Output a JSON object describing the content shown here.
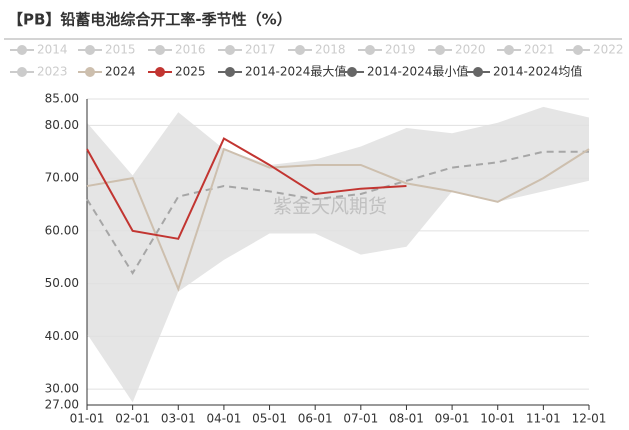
{
  "chart_data": {
    "type": "line",
    "title": "【PB】铅蓄电池综合开工率-季节性（%）",
    "watermark": "紫金天风期货",
    "legend_inactive": [
      "2014",
      "2015",
      "2016",
      "2017",
      "2018",
      "2019",
      "2020",
      "2021",
      "2022",
      "2023"
    ],
    "x": [
      "01-01",
      "02-01",
      "03-01",
      "04-01",
      "05-01",
      "06-01",
      "07-01",
      "08-01",
      "09-01",
      "10-01",
      "11-01",
      "12-01"
    ],
    "ylim": [
      27,
      85
    ],
    "yticks": [
      {
        "value": 27,
        "label": "27.00"
      },
      {
        "value": 30,
        "label": "30.00"
      },
      {
        "value": 40,
        "label": "40.00"
      },
      {
        "value": 50,
        "label": "50.00"
      },
      {
        "value": 60,
        "label": "60.00"
      },
      {
        "value": 70,
        "label": "70.00"
      },
      {
        "value": 80,
        "label": "80.00"
      },
      {
        "value": 85,
        "label": "85.00"
      }
    ],
    "grid": true,
    "series": [
      {
        "name": "2024",
        "color": "#cdbfae",
        "values": [
          68.5,
          70,
          49,
          75.5,
          72,
          72.5,
          72.5,
          69,
          67.5,
          65.5,
          70,
          75.5
        ]
      },
      {
        "name": "2025",
        "color": "#c23531",
        "values": [
          75.5,
          60,
          58.5,
          77.5,
          72.5,
          67,
          68,
          68.5,
          null,
          null,
          null,
          null
        ]
      },
      {
        "name": "2014-2024最大值",
        "color": "#e5e5e5",
        "values": [
          80.5,
          70.5,
          82.5,
          75.5,
          72.5,
          73.5,
          76,
          79.5,
          78.5,
          80.5,
          83.5,
          81.5
        ]
      },
      {
        "name": "2014-2024最小值",
        "color": "#ffffff",
        "values": [
          40.5,
          27.5,
          48.5,
          54.5,
          59.5,
          59.5,
          55.5,
          57,
          67.5,
          65.5,
          67.5,
          69.5
        ]
      },
      {
        "name": "2014-2024均值",
        "color": "#a6a6a6",
        "values": [
          66,
          52,
          66.5,
          68.5,
          67.5,
          66,
          67,
          69.5,
          72,
          73,
          75,
          75
        ]
      }
    ]
  }
}
